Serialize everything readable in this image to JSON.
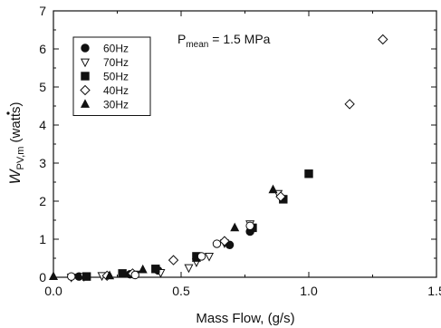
{
  "chart_data": {
    "type": "scatter",
    "xlabel": "Mass Flow, (g/s)",
    "ylabel": {
      "base": "W",
      "subscript": "PV,m",
      "unit": "(watts)",
      "dot_accent": true
    },
    "annotation": {
      "prefix": "P",
      "subscript": "mean",
      "suffix": " = 1.5 MPa"
    },
    "xlim": [
      0.0,
      1.5
    ],
    "ylim": [
      0,
      7
    ],
    "xticks": [
      "0.0",
      "0.5",
      "1.0",
      "1.5"
    ],
    "yticks": [
      "0",
      "1",
      "2",
      "3",
      "4",
      "5",
      "6",
      "7"
    ],
    "grid": false,
    "legend_position": "top-left",
    "series": [
      {
        "name": "60Hz",
        "marker": "filled-circle",
        "x": [
          0.1,
          0.3,
          0.41,
          0.69,
          0.77
        ],
        "y": [
          0.02,
          0.08,
          0.18,
          0.85,
          1.2
        ]
      },
      {
        "name": "70Hz",
        "marker": "open-triangle-down",
        "x": [
          0.07,
          0.12,
          0.19,
          0.32,
          0.42,
          0.53,
          0.56,
          0.61,
          0.67,
          0.77,
          0.88
        ],
        "y": [
          0.0,
          0.02,
          0.04,
          0.08,
          0.12,
          0.25,
          0.4,
          0.55,
          0.9,
          1.4,
          2.2
        ]
      },
      {
        "name": "50Hz",
        "marker": "filled-square",
        "x": [
          0.13,
          0.27,
          0.4,
          0.56,
          0.78,
          0.9,
          1.0
        ],
        "y": [
          0.02,
          0.1,
          0.22,
          0.55,
          1.3,
          2.05,
          2.72
        ]
      },
      {
        "name": "40Hz",
        "marker": "open-diamond",
        "x": [
          0.21,
          0.31,
          0.47,
          0.67,
          0.89,
          1.16,
          1.29
        ],
        "y": [
          0.04,
          0.1,
          0.45,
          0.95,
          2.12,
          4.55,
          6.25
        ]
      },
      {
        "name": "30Hz",
        "marker": "filled-triangle-up",
        "x": [
          0.0,
          0.22,
          0.35,
          0.56,
          0.71,
          0.86
        ],
        "y": [
          0.02,
          0.04,
          0.2,
          0.5,
          1.3,
          2.3
        ]
      },
      {
        "name": "",
        "marker": "open-circle",
        "x": [
          0.07,
          0.32,
          0.58,
          0.64,
          0.77
        ],
        "y": [
          0.02,
          0.06,
          0.55,
          0.88,
          1.35
        ]
      }
    ]
  }
}
